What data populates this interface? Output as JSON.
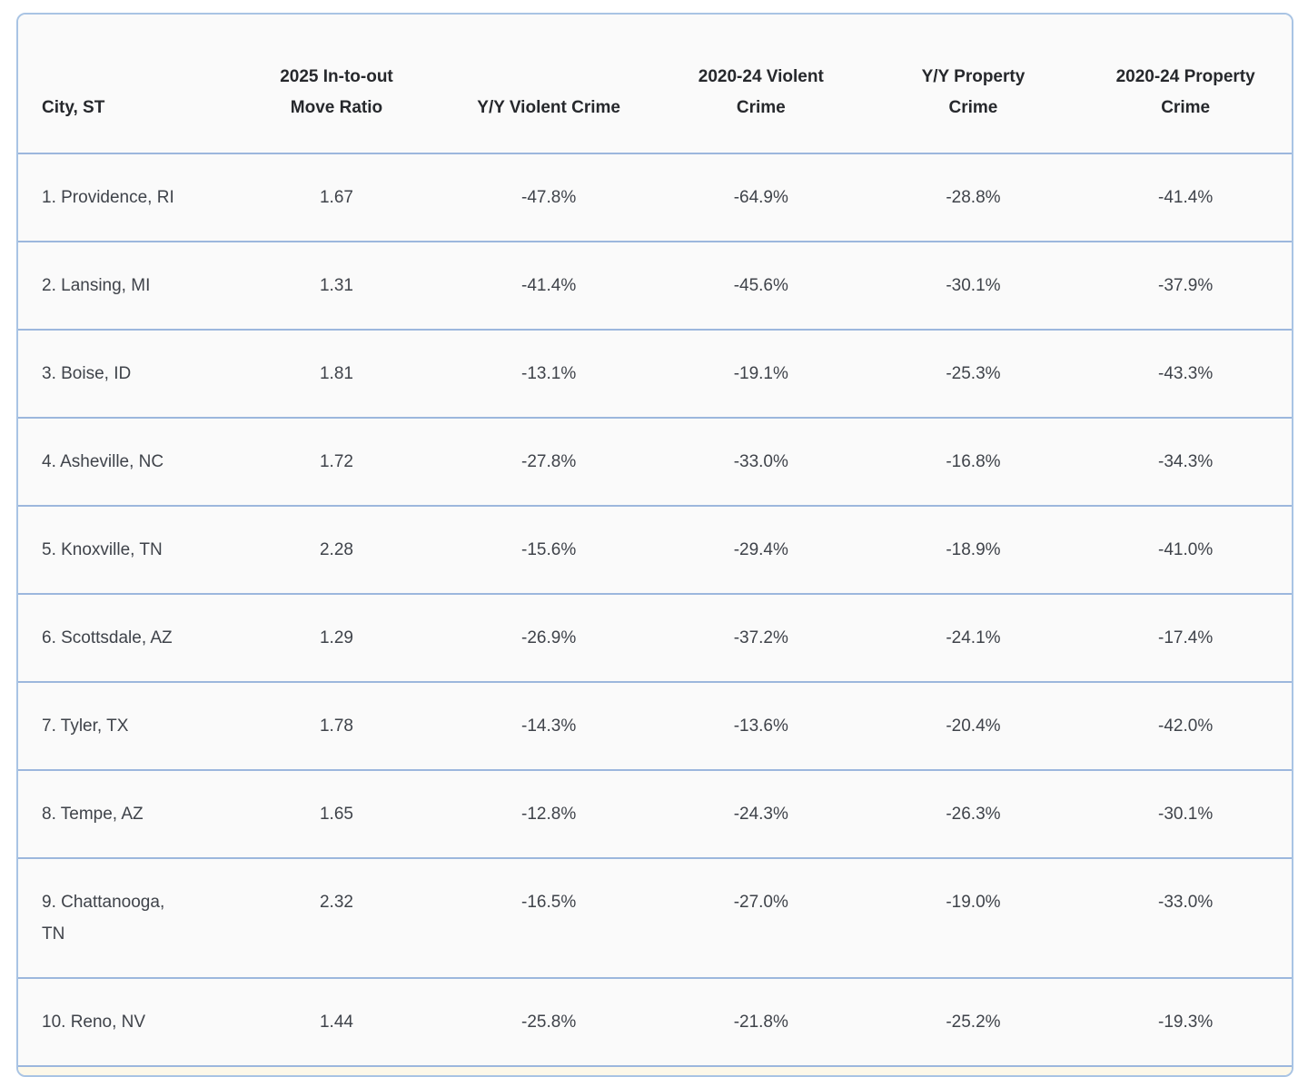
{
  "colors": {
    "page_bg": "#ffffff",
    "table_border": "#a9c4e4",
    "row_separator": "#9cb7dd",
    "row_bg": "#fafafa",
    "partial_row_bg": "#fdf8e9",
    "text": "#3f434a",
    "header_text": "#26282c"
  },
  "table": {
    "columns": [
      {
        "id": "city",
        "label": "City, ST"
      },
      {
        "id": "move-ratio",
        "label": "2025 In-to-out Move Ratio"
      },
      {
        "id": "yy-violent-crime",
        "label": "Y/Y Violent Crime"
      },
      {
        "id": "violent-crime-2020-24",
        "label": "2020-24 Violent Crime"
      },
      {
        "id": "yy-property-crime",
        "label": "Y/Y Property Crime"
      },
      {
        "id": "property-crime-2020-24",
        "label": "2020-24 Property Crime"
      }
    ],
    "rows": [
      {
        "city_lines": [
          "1. Providence, RI"
        ],
        "values": [
          "1.67",
          "-47.8%",
          "-64.9%",
          "-28.8%",
          "-41.4%"
        ]
      },
      {
        "city_lines": [
          "2. Lansing, MI"
        ],
        "values": [
          "1.31",
          "-41.4%",
          "-45.6%",
          "-30.1%",
          "-37.9%"
        ]
      },
      {
        "city_lines": [
          "3. Boise, ID"
        ],
        "values": [
          "1.81",
          "-13.1%",
          "-19.1%",
          "-25.3%",
          "-43.3%"
        ]
      },
      {
        "city_lines": [
          "4. Asheville, NC"
        ],
        "values": [
          "1.72",
          "-27.8%",
          "-33.0%",
          "-16.8%",
          "-34.3%"
        ]
      },
      {
        "city_lines": [
          "5. Knoxville, TN"
        ],
        "values": [
          "2.28",
          "-15.6%",
          "-29.4%",
          "-18.9%",
          "-41.0%"
        ]
      },
      {
        "city_lines": [
          "6. Scottsdale, AZ"
        ],
        "values": [
          "1.29",
          "-26.9%",
          "-37.2%",
          "-24.1%",
          "-17.4%"
        ]
      },
      {
        "city_lines": [
          "7. Tyler, TX"
        ],
        "values": [
          "1.78",
          "-14.3%",
          "-13.6%",
          "-20.4%",
          "-42.0%"
        ]
      },
      {
        "city_lines": [
          "8. Tempe, AZ"
        ],
        "values": [
          "1.65",
          "-12.8%",
          "-24.3%",
          "-26.3%",
          "-30.1%"
        ]
      },
      {
        "city_lines": [
          "9. Chattanooga,",
          "TN"
        ],
        "values": [
          "2.32",
          "-16.5%",
          "-27.0%",
          "-19.0%",
          "-33.0%"
        ]
      },
      {
        "city_lines": [
          "10. Reno, NV"
        ],
        "values": [
          "1.44",
          "-25.8%",
          "-21.8%",
          "-25.2%",
          "-19.3%"
        ]
      }
    ],
    "partial_row_visible": true
  },
  "chart_data": {
    "type": "table",
    "title": "",
    "categories": [
      "City, ST",
      "2025 In-to-out Move Ratio",
      "Y/Y Violent Crime",
      "2020-24 Violent Crime",
      "Y/Y Property Crime",
      "2020-24 Property Crime"
    ],
    "series": [
      {
        "name": "1. Providence, RI",
        "values": [
          1.67,
          -47.8,
          -64.9,
          -28.8,
          -41.4
        ]
      },
      {
        "name": "2. Lansing, MI",
        "values": [
          1.31,
          -41.4,
          -45.6,
          -30.1,
          -37.9
        ]
      },
      {
        "name": "3. Boise, ID",
        "values": [
          1.81,
          -13.1,
          -19.1,
          -25.3,
          -43.3
        ]
      },
      {
        "name": "4. Asheville, NC",
        "values": [
          1.72,
          -27.8,
          -33.0,
          -16.8,
          -34.3
        ]
      },
      {
        "name": "5. Knoxville, TN",
        "values": [
          2.28,
          -15.6,
          -29.4,
          -18.9,
          -41.0
        ]
      },
      {
        "name": "6. Scottsdale, AZ",
        "values": [
          1.29,
          -26.9,
          -37.2,
          -24.1,
          -17.4
        ]
      },
      {
        "name": "7. Tyler, TX",
        "values": [
          1.78,
          -14.3,
          -13.6,
          -20.4,
          -42.0
        ]
      },
      {
        "name": "8. Tempe, AZ",
        "values": [
          1.65,
          -12.8,
          -24.3,
          -26.3,
          -30.1
        ]
      },
      {
        "name": "9. Chattanooga, TN",
        "values": [
          2.32,
          -16.5,
          -27.0,
          -19.0,
          -33.0
        ]
      },
      {
        "name": "10. Reno, NV",
        "values": [
          1.44,
          -25.8,
          -21.8,
          -25.2,
          -19.3
        ]
      }
    ]
  }
}
